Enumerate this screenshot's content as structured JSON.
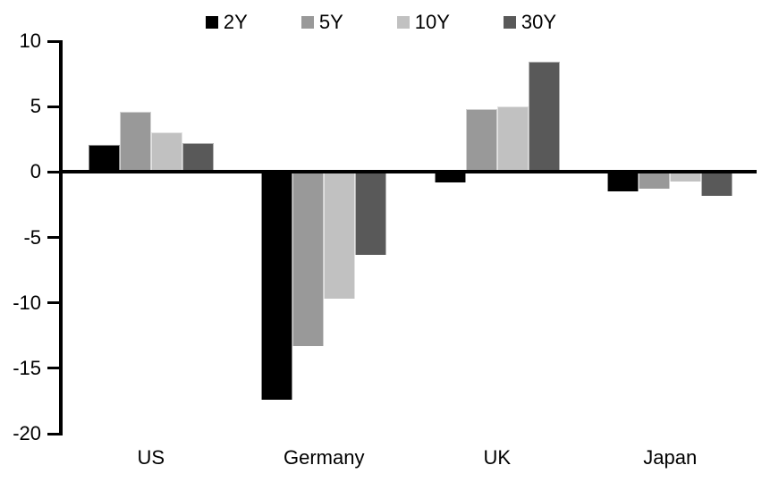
{
  "chart_data": {
    "type": "bar",
    "title": "",
    "xlabel": "",
    "ylabel": "",
    "categories": [
      "US",
      "Germany",
      "UK",
      "Japan"
    ],
    "series": [
      {
        "name": "2Y",
        "color": "#000000",
        "values": [
          2.1,
          -17.4,
          -0.8,
          -1.5
        ]
      },
      {
        "name": "5Y",
        "color": "#999999",
        "values": [
          4.6,
          -13.3,
          4.8,
          -1.3
        ]
      },
      {
        "name": "10Y",
        "color": "#c1c1c1",
        "values": [
          3.0,
          -9.7,
          5.0,
          -0.7
        ]
      },
      {
        "name": "30Y",
        "color": "#595959",
        "values": [
          2.2,
          -6.3,
          8.4,
          -1.8
        ]
      }
    ],
    "ylim": [
      -20,
      10
    ],
    "yticks": [
      10,
      5,
      0,
      -5,
      -10,
      -15,
      -20
    ],
    "legend_position": "top",
    "grid": false,
    "axis_color": "#000000",
    "background_color": "#ffffff"
  }
}
